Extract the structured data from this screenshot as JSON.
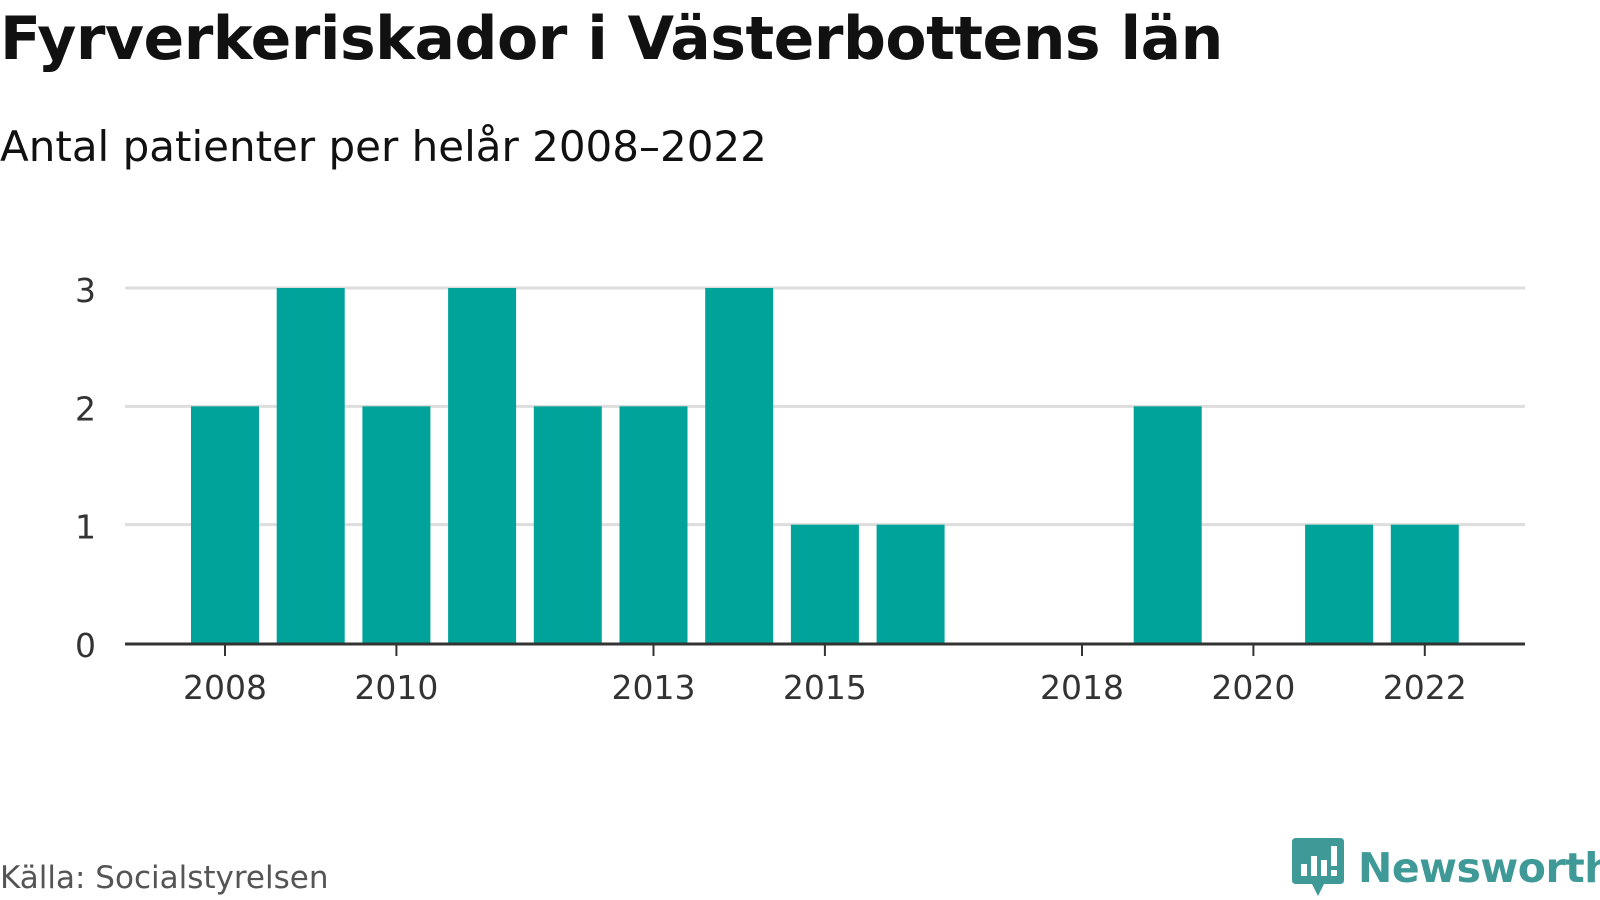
{
  "title": "Fyrverkeriskador i Västerbottens län",
  "subtitle": "Antal patienter per helår 2008–2022",
  "source": "Källa: Socialstyrelsen",
  "brand": {
    "name": "Newsworthy",
    "icon": "newsworthy-logo-icon"
  },
  "colors": {
    "bar": "#00a39a",
    "grid": "#dddddd",
    "axis": "#333333",
    "brand": "#3f9a97",
    "source": "#555555"
  },
  "chart_data": {
    "type": "bar",
    "categories": [
      "2008",
      "2009",
      "2010",
      "2011",
      "2012",
      "2013",
      "2014",
      "2015",
      "2016",
      "2017",
      "2018",
      "2019",
      "2020",
      "2021",
      "2022"
    ],
    "values": [
      2,
      3,
      2,
      3,
      2,
      2,
      3,
      1,
      1,
      0,
      0,
      2,
      0,
      1,
      1
    ],
    "x_tick_labels": [
      "2008",
      "2010",
      "2013",
      "2015",
      "2018",
      "2020",
      "2022"
    ],
    "y_ticks": [
      0,
      1,
      2,
      3
    ],
    "ylim": [
      0,
      3
    ],
    "grid": true,
    "xlabel": "",
    "ylabel": ""
  }
}
